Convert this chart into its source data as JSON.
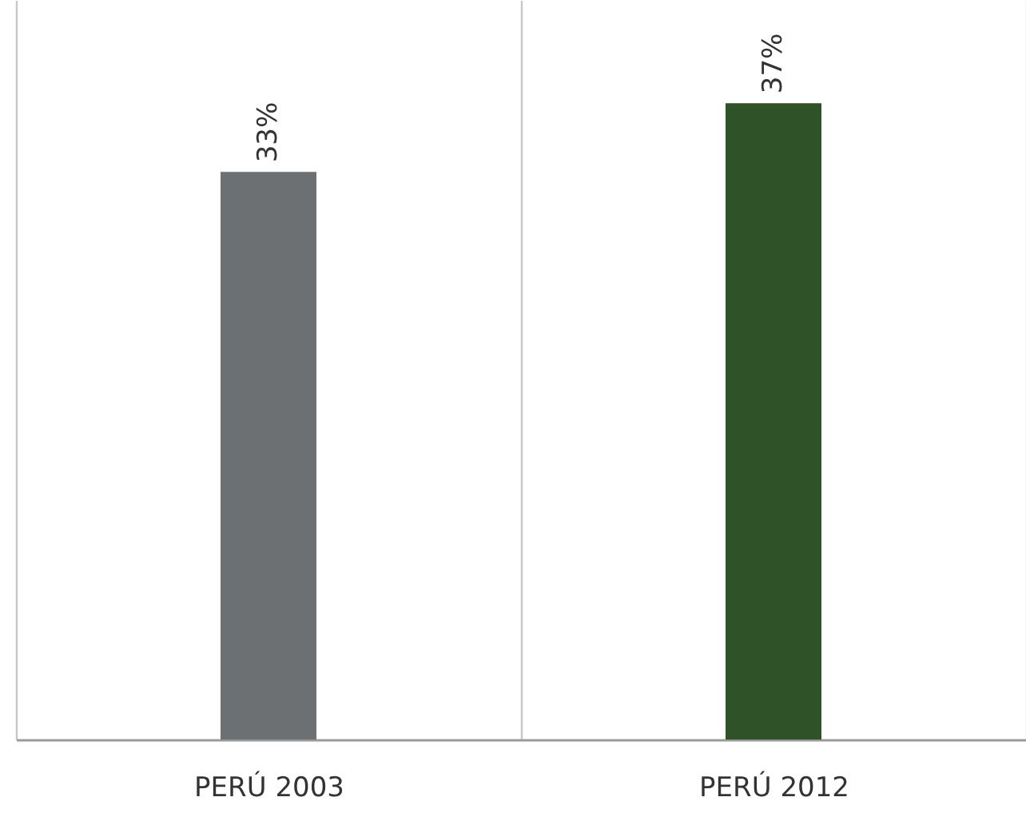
{
  "chart_data": {
    "type": "bar",
    "categories": [
      "PERÚ 2003",
      "PERÚ 2012"
    ],
    "values": [
      33,
      37
    ],
    "colors": [
      "#6d7073",
      "#2f5229"
    ],
    "value_labels": [
      "33%",
      "37%"
    ],
    "ylim": [
      0,
      43
    ],
    "grid": "x"
  }
}
